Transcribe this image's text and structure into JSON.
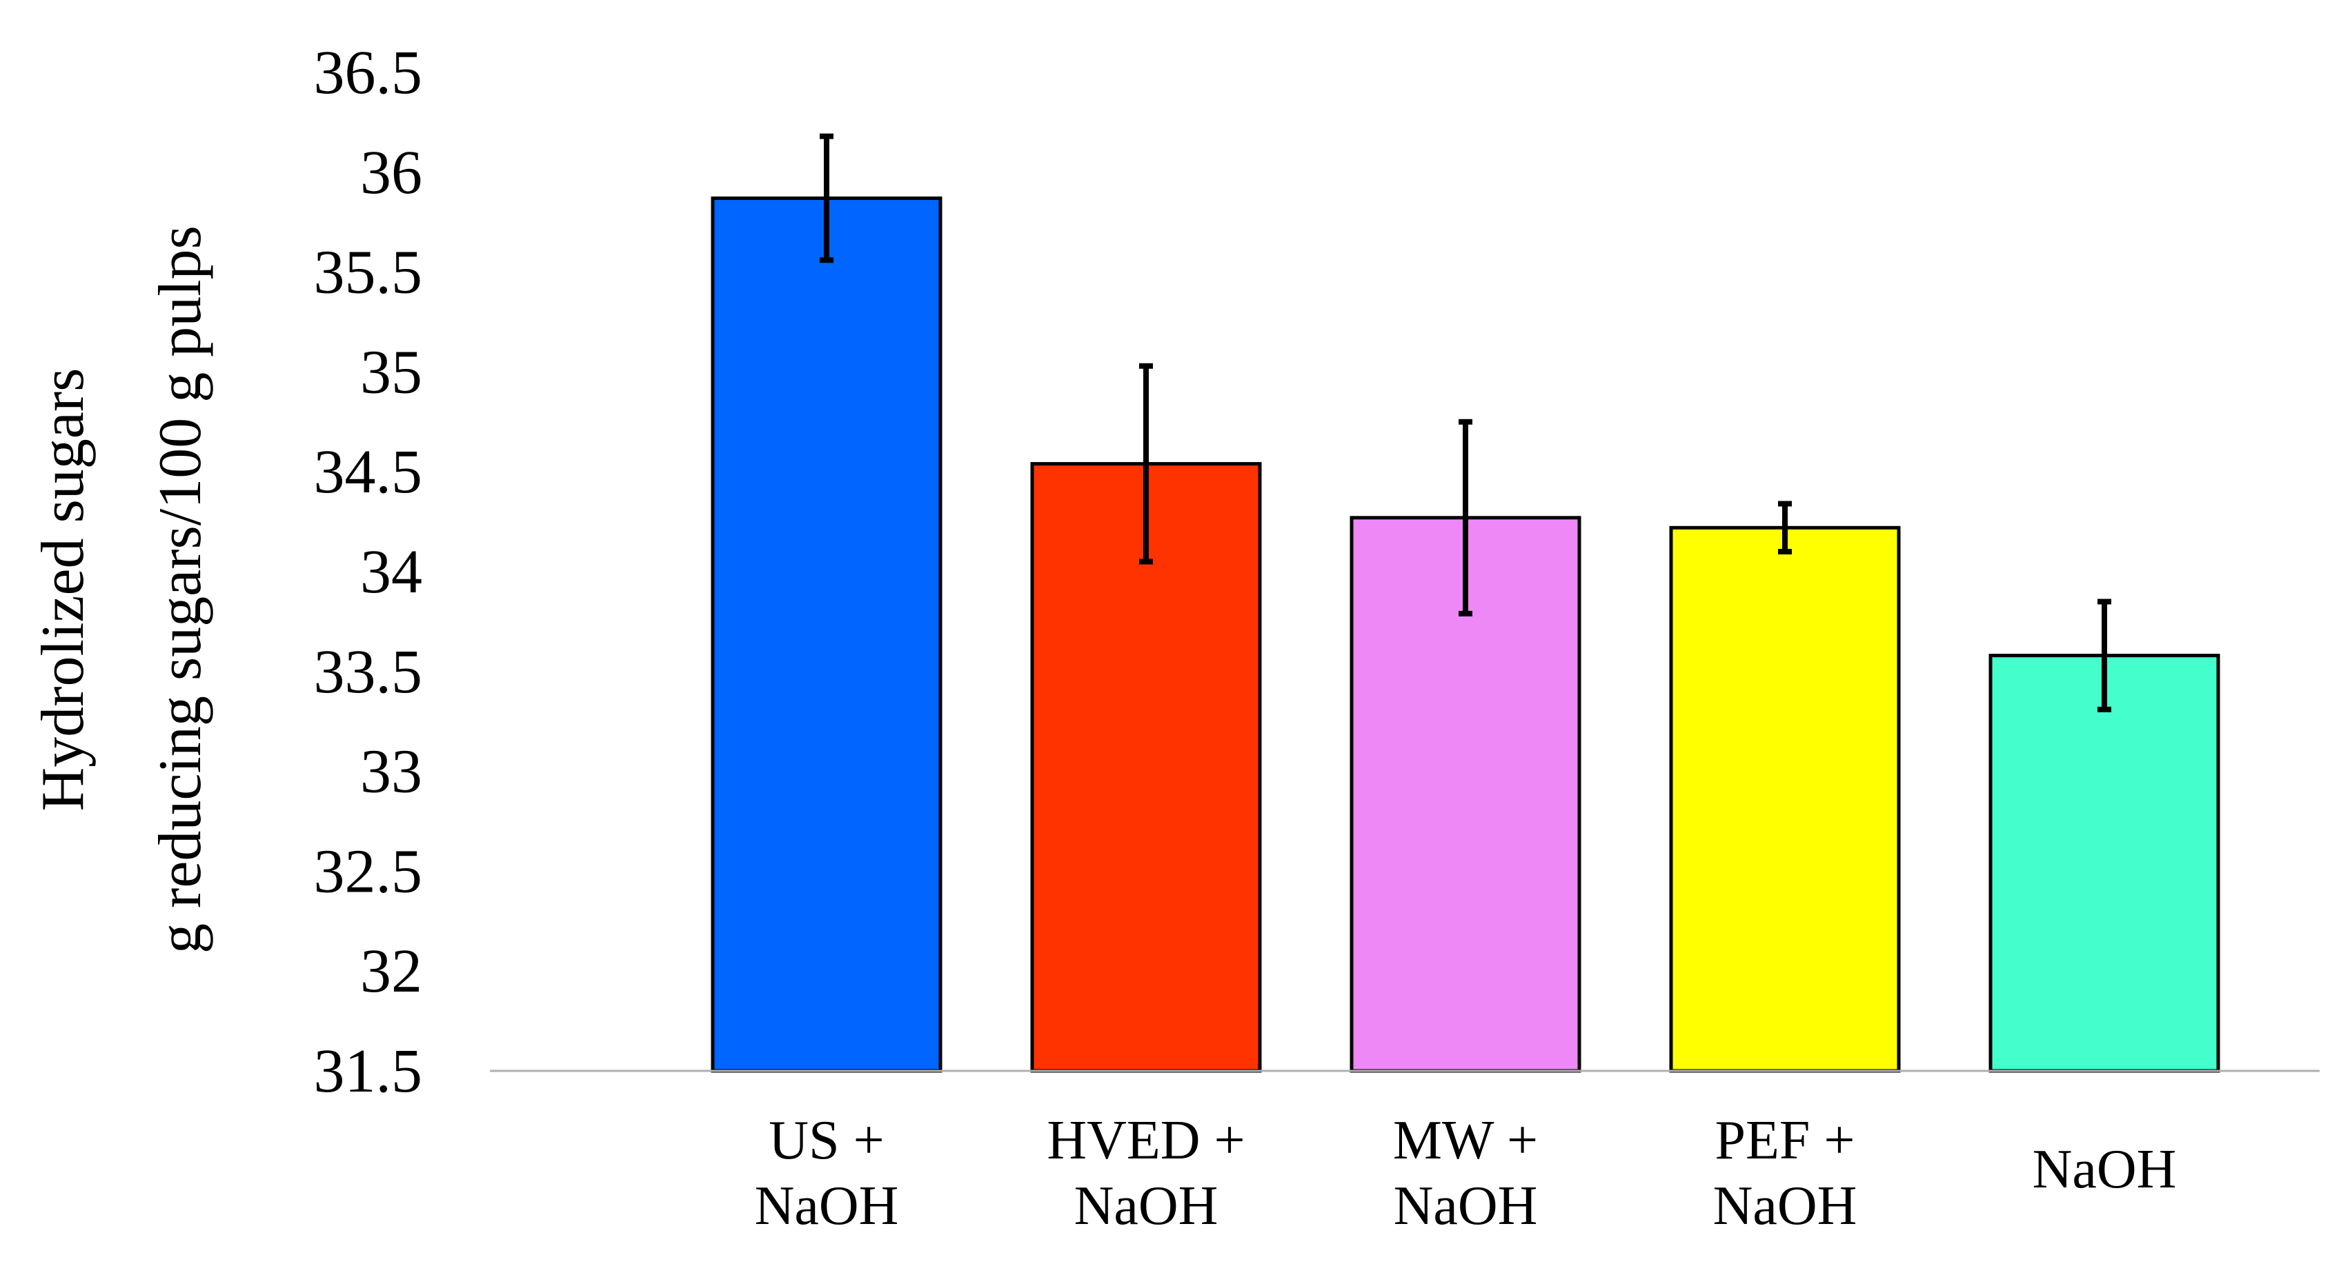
{
  "chart_data": {
    "type": "bar",
    "title": "",
    "xlabel": "",
    "ylabel_lines": [
      "Hydrolized sugars",
      "g reducing sugars/100 g pulps"
    ],
    "ylim": [
      31.5,
      36.5
    ],
    "yticks": [
      31.5,
      32,
      32.5,
      33,
      33.5,
      34,
      34.5,
      35,
      35.5,
      36,
      36.5
    ],
    "yticklabels": [
      "31.5",
      "32",
      "32.5",
      "33",
      "33.5",
      "34",
      "34.5",
      "35",
      "35.5",
      "36",
      "36.5"
    ],
    "grid": false,
    "legend": "none",
    "categories": [
      [
        "US +",
        "NaOH"
      ],
      [
        "HVED +",
        "NaOH"
      ],
      [
        "MW +",
        "NaOH"
      ],
      [
        "PEF +",
        "NaOH"
      ],
      [
        "NaOH"
      ]
    ],
    "values": [
      35.87,
      34.54,
      34.27,
      34.22,
      33.58
    ],
    "errors": [
      0.31,
      0.49,
      0.48,
      0.12,
      0.27
    ],
    "colors": [
      "#0066FF",
      "#FF3300",
      "#EE88F7",
      "#FFFF00",
      "#44FFCC"
    ]
  }
}
